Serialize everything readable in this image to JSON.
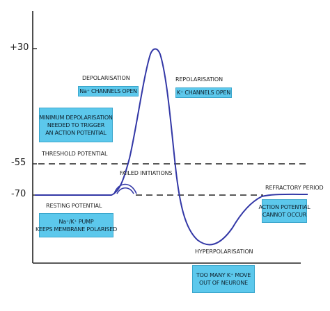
{
  "axis": {
    "ticks": [
      "+30",
      "-55",
      "-70"
    ]
  },
  "labels": {
    "threshold": "THRESHOLD POTENTIAL",
    "depolarisation": "DEPOLARISATION",
    "repolarisation": "REPOLARISATION",
    "failed_initiations": "FAILED INITIATIONS",
    "resting_potential": "RESTING POTENTIAL",
    "hyperpolarisation": "HYPERPOLARISATION",
    "refractory_period": "REFRACTORY PERIOD"
  },
  "boxes": {
    "na_channels": [
      "Na⁺ CHANNELS OPEN"
    ],
    "k_channels": [
      "K⁺ CHANNELS OPEN"
    ],
    "min_depolarisation": [
      "MINIMUM DEPOLARISATION",
      "NEEDED TO TRIGGER",
      "AN ACTION POTENTIAL"
    ],
    "pump": [
      "Na⁺/K⁺ PUMP",
      "KEEPS MEMBRANE POLARISED"
    ],
    "cannot_occur": [
      "ACTION POTENTIAL",
      "CANNOT OCCUR"
    ],
    "too_many_k": [
      "TOO MANY K⁺ MOVE",
      "OUT OF NEURONE"
    ]
  },
  "colors": {
    "curve": "#3237a6",
    "box_fill": "#5cc8ec",
    "box_border": "#3aa6cc",
    "axis": "#222222",
    "dashed": "#222222"
  }
}
